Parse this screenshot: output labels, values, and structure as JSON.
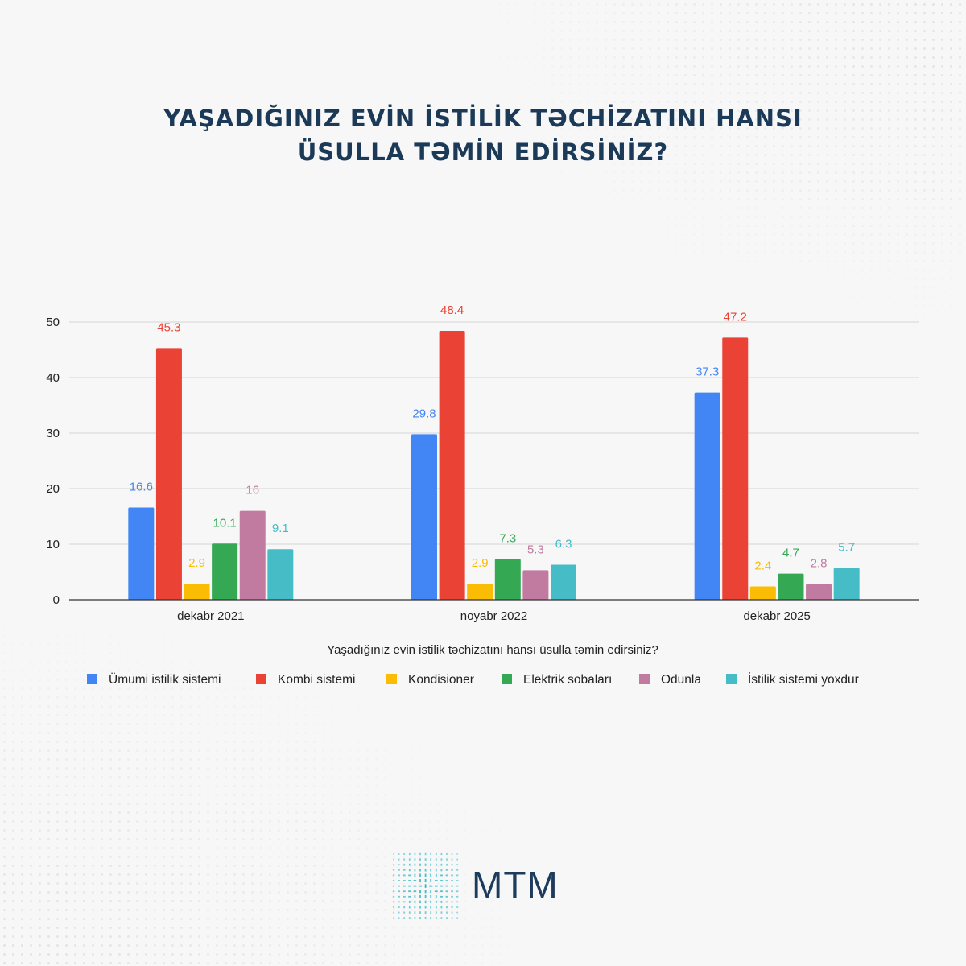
{
  "header": {
    "title_line1": "YAŞADIĞINIZ EVİN İSTİLİK TƏCHİZATINI HANSI",
    "title_line2": "ÜSULLA TƏMİN EDİRSİNİZ?"
  },
  "chart_data": {
    "type": "bar",
    "categories": [
      "dekabr 2021",
      "noyabr 2022",
      "dekabr 2025"
    ],
    "series": [
      {
        "name": "Ümumi istilik sistemi",
        "color": "#4285f4",
        "values": [
          16.6,
          29.8,
          37.3
        ],
        "labels": [
          "16.6",
          "29.8",
          "37.3"
        ]
      },
      {
        "name": "Kombi sistemi",
        "color": "#ea4335",
        "values": [
          45.3,
          48.4,
          47.2
        ],
        "labels": [
          "45.3",
          "48.4",
          "47.2"
        ]
      },
      {
        "name": "Kondisioner",
        "color": "#fbbc04",
        "values": [
          2.9,
          2.9,
          2.4
        ],
        "labels": [
          "2.9",
          "2.9",
          "2.4"
        ]
      },
      {
        "name": "Elektrik sobaları",
        "color": "#34a853",
        "values": [
          10.1,
          7.3,
          4.7
        ],
        "labels": [
          "10.1",
          "7.3",
          "4.7"
        ]
      },
      {
        "name": "Odunla",
        "color": "#c27ba0",
        "values": [
          16,
          5.3,
          2.8
        ],
        "labels": [
          "16",
          "5.3",
          "2.8"
        ]
      },
      {
        "name": "İstilik sistemi yoxdur",
        "color": "#46bdc6",
        "values": [
          9.1,
          6.3,
          5.7
        ],
        "labels": [
          "9.1",
          "6.3",
          "5.7"
        ]
      }
    ],
    "xlabel": "Yaşadığınız evin istilik təchizatını hansı üsulla təmin edirsiniz?",
    "ylabel": "",
    "ylim": [
      0,
      50
    ],
    "yticks": [
      0,
      10,
      20,
      30,
      40,
      50
    ],
    "grid": true,
    "legend_position": "bottom"
  },
  "logo": {
    "text": "MTM",
    "accent": "#2fb8c4"
  }
}
